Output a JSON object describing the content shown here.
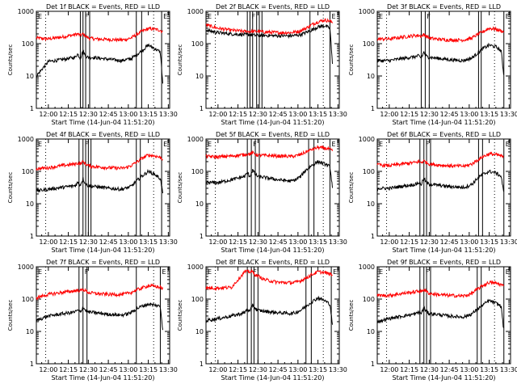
{
  "chart_data": {
    "type": "line",
    "grid_layout": "3x3",
    "shared": {
      "xlabel": "Start Time (14-Jun-04 11:51:20)",
      "ylabel": "Counts/sec",
      "xlim_minutes_from_1200": [
        -9,
        91
      ],
      "x_tick_labels": [
        "12:00",
        "12:15",
        "12:30",
        "12:45",
        "13:00",
        "13:15",
        "13:30"
      ],
      "x_tick_minutes": [
        0,
        15,
        30,
        45,
        60,
        75,
        90
      ],
      "ylim": [
        1,
        1000
      ],
      "y_scale": "log",
      "y_tick_labels": [
        "1",
        "10",
        "100",
        "1000"
      ],
      "y_tick_values": [
        1,
        10,
        100,
        1000
      ],
      "series_names": [
        "Events",
        "LLD"
      ],
      "series_colors": {
        "Events": "#000000",
        "LLD": "#ff0000"
      },
      "dotted_marker_minutes": [
        -2,
        79
      ],
      "flag_labels": {
        "left": "E",
        "mid": "F",
        "right": "E"
      }
    },
    "panels": [
      {
        "title": "Det 1f BLACK = Events, RED = LLD",
        "x": [
          -9,
          0,
          10,
          20,
          22,
          24,
          26,
          28,
          30,
          35,
          45,
          55,
          58,
          62,
          66,
          70,
          75,
          80,
          84,
          86
        ],
        "events": [
          10,
          28,
          32,
          38,
          48,
          35,
          60,
          40,
          38,
          37,
          33,
          30,
          32,
          34,
          45,
          60,
          90,
          70,
          55,
          5
        ],
        "lld": [
          150,
          140,
          160,
          190,
          200,
          180,
          200,
          170,
          150,
          140,
          135,
          130,
          135,
          150,
          190,
          240,
          290,
          280,
          260,
          230
        ],
        "solid_marker_minutes": [
          24,
          26,
          28,
          31,
          66,
          70,
          85
        ]
      },
      {
        "title": "Det 2f BLACK = Events, RED = LLD",
        "x": [
          -9,
          0,
          10,
          20,
          22,
          24,
          26,
          28,
          30,
          35,
          45,
          55,
          58,
          62,
          66,
          70,
          75,
          80,
          84,
          86
        ],
        "events": [
          260,
          220,
          200,
          190,
          190,
          190,
          185,
          180,
          180,
          180,
          175,
          175,
          180,
          190,
          220,
          260,
          330,
          360,
          300,
          20
        ],
        "lld": [
          380,
          300,
          260,
          240,
          240,
          240,
          240,
          240,
          240,
          230,
          220,
          220,
          230,
          250,
          300,
          380,
          480,
          540,
          500,
          450
        ],
        "solid_marker_minutes": [
          22,
          24,
          26,
          29,
          31,
          33,
          69,
          84
        ]
      },
      {
        "title": "Det 3f BLACK = Events, RED = LLD",
        "x": [
          -9,
          0,
          10,
          20,
          22,
          24,
          26,
          28,
          30,
          35,
          45,
          55,
          58,
          62,
          66,
          70,
          75,
          80,
          84,
          86
        ],
        "events": [
          30,
          30,
          35,
          40,
          42,
          36,
          55,
          40,
          38,
          36,
          32,
          30,
          32,
          36,
          50,
          70,
          90,
          80,
          60,
          10
        ],
        "lld": [
          140,
          140,
          160,
          180,
          180,
          170,
          190,
          170,
          150,
          140,
          130,
          130,
          135,
          150,
          190,
          230,
          300,
          280,
          250,
          230
        ],
        "solid_marker_minutes": [
          24,
          27,
          30,
          67,
          69,
          86
        ]
      },
      {
        "title": "Det 4f BLACK = Events, RED = LLD",
        "x": [
          -9,
          0,
          10,
          20,
          22,
          24,
          26,
          28,
          30,
          35,
          45,
          55,
          58,
          62,
          66,
          70,
          75,
          80,
          84,
          86
        ],
        "events": [
          25,
          28,
          32,
          36,
          45,
          38,
          60,
          40,
          36,
          34,
          30,
          28,
          30,
          34,
          50,
          70,
          100,
          80,
          60,
          20
        ],
        "lld": [
          120,
          130,
          150,
          170,
          180,
          170,
          200,
          170,
          150,
          140,
          130,
          125,
          130,
          150,
          190,
          250,
          320,
          300,
          270,
          240
        ],
        "solid_marker_minutes": [
          23,
          26,
          28,
          30,
          32,
          66,
          69,
          85
        ]
      },
      {
        "title": "Det 5f BLACK = Events, RED = LLD",
        "x": [
          -9,
          0,
          10,
          20,
          22,
          24,
          26,
          28,
          30,
          35,
          45,
          55,
          58,
          62,
          66,
          70,
          75,
          80,
          84,
          86
        ],
        "events": [
          45,
          45,
          55,
          70,
          90,
          70,
          110,
          80,
          70,
          65,
          55,
          50,
          55,
          70,
          110,
          150,
          200,
          170,
          140,
          30
        ],
        "lld": [
          290,
          280,
          300,
          330,
          350,
          340,
          380,
          340,
          320,
          310,
          300,
          290,
          300,
          330,
          400,
          470,
          550,
          520,
          480,
          420
        ],
        "solid_marker_minutes": [
          22,
          25,
          28,
          31,
          68,
          72,
          84
        ]
      },
      {
        "title": "Det 6f BLACK = Events, RED = LLD",
        "x": [
          -9,
          0,
          10,
          20,
          22,
          24,
          26,
          28,
          30,
          35,
          45,
          55,
          58,
          62,
          66,
          70,
          75,
          80,
          84,
          86
        ],
        "events": [
          30,
          30,
          35,
          40,
          45,
          40,
          60,
          45,
          40,
          38,
          34,
          32,
          34,
          40,
          60,
          80,
          100,
          90,
          70,
          20
        ],
        "lld": [
          160,
          150,
          170,
          190,
          200,
          190,
          210,
          190,
          170,
          160,
          150,
          145,
          150,
          170,
          220,
          280,
          350,
          330,
          300,
          270
        ],
        "solid_marker_minutes": [
          23,
          26,
          28,
          31,
          67,
          70,
          86
        ]
      },
      {
        "title": "Det 7f BLACK = Events, RED = LLD",
        "x": [
          -9,
          0,
          10,
          20,
          22,
          24,
          26,
          28,
          30,
          35,
          45,
          55,
          58,
          62,
          66,
          70,
          75,
          80,
          84,
          86
        ],
        "events": [
          22,
          30,
          35,
          40,
          45,
          40,
          55,
          45,
          40,
          38,
          34,
          32,
          34,
          38,
          50,
          60,
          70,
          65,
          60,
          10
        ],
        "lld": [
          110,
          140,
          160,
          180,
          190,
          180,
          200,
          180,
          160,
          150,
          140,
          140,
          145,
          160,
          190,
          220,
          260,
          250,
          230,
          210
        ],
        "solid_marker_minutes": [
          23,
          26,
          29,
          66,
          84
        ]
      },
      {
        "title": "Det 8f BLACK = Events, RED = LLD",
        "x": [
          -9,
          0,
          10,
          20,
          22,
          24,
          26,
          28,
          30,
          35,
          45,
          55,
          58,
          62,
          66,
          70,
          75,
          80,
          84,
          86
        ],
        "events": [
          22,
          25,
          30,
          38,
          50,
          40,
          70,
          50,
          45,
          42,
          38,
          36,
          38,
          45,
          60,
          80,
          110,
          90,
          70,
          15
        ],
        "lld": [
          220,
          220,
          230,
          700,
          700,
          700,
          700,
          560,
          520,
          400,
          330,
          320,
          330,
          370,
          450,
          560,
          700,
          660,
          600,
          540
        ],
        "solid_marker_minutes": [
          22,
          25,
          27,
          30,
          66,
          70,
          85
        ]
      },
      {
        "title": "Det 9f BLACK = Events, RED = LLD",
        "x": [
          -9,
          0,
          10,
          20,
          22,
          24,
          26,
          28,
          30,
          35,
          45,
          55,
          58,
          62,
          66,
          70,
          75,
          80,
          84,
          86
        ],
        "events": [
          20,
          25,
          30,
          35,
          40,
          36,
          55,
          40,
          36,
          34,
          30,
          28,
          30,
          35,
          48,
          65,
          90,
          75,
          60,
          10
        ],
        "lld": [
          130,
          130,
          150,
          170,
          180,
          170,
          200,
          170,
          150,
          140,
          130,
          125,
          130,
          150,
          200,
          260,
          330,
          310,
          280,
          250
        ],
        "solid_marker_minutes": [
          23,
          26,
          28,
          31,
          66,
          69,
          86
        ]
      }
    ]
  }
}
